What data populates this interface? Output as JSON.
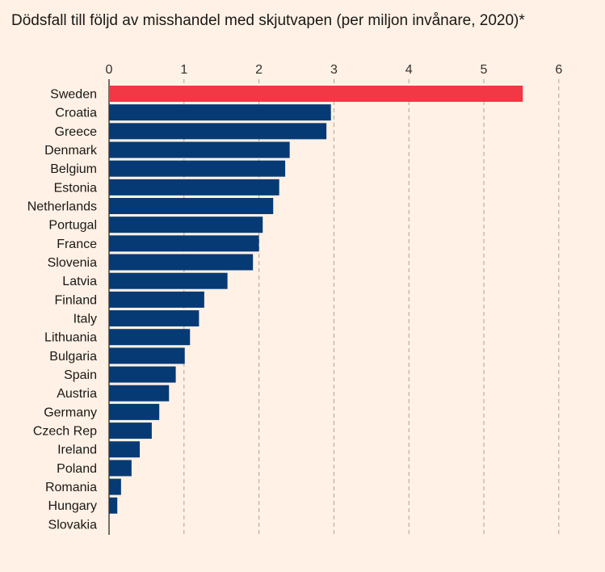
{
  "title": "Dödsfall till följd av misshandel med skjutvapen (per miljon invånare, 2020)*",
  "colors": {
    "background": "#fff1e5",
    "highlight": "#f23745",
    "bar": "#063a74",
    "grid": "#a9a39d",
    "text": "#33302e"
  },
  "chart_data": {
    "type": "bar",
    "orientation": "horizontal",
    "title": "Dödsfall till följd av misshandel med skjutvapen (per miljon invånare, 2020)*",
    "xlabel": "",
    "ylabel": "",
    "xlim": [
      0,
      6
    ],
    "xticks": [
      0,
      1,
      2,
      3,
      4,
      5,
      6
    ],
    "grid": true,
    "highlight_category": "Sweden",
    "categories": [
      "Sweden",
      "Croatia",
      "Greece",
      "Denmark",
      "Belgium",
      "Estonia",
      "Netherlands",
      "Portugal",
      "France",
      "Slovenia",
      "Latvia",
      "Finland",
      "Italy",
      "Lithuania",
      "Bulgaria",
      "Spain",
      "Austria",
      "Germany",
      "Czech Rep",
      "Ireland",
      "Poland",
      "Romania",
      "Hungary",
      "Slovakia"
    ],
    "values": [
      5.52,
      2.96,
      2.9,
      2.41,
      2.35,
      2.27,
      2.19,
      2.05,
      2.0,
      1.92,
      1.58,
      1.27,
      1.2,
      1.08,
      1.01,
      0.89,
      0.8,
      0.67,
      0.57,
      0.41,
      0.3,
      0.16,
      0.11,
      0.0
    ]
  }
}
